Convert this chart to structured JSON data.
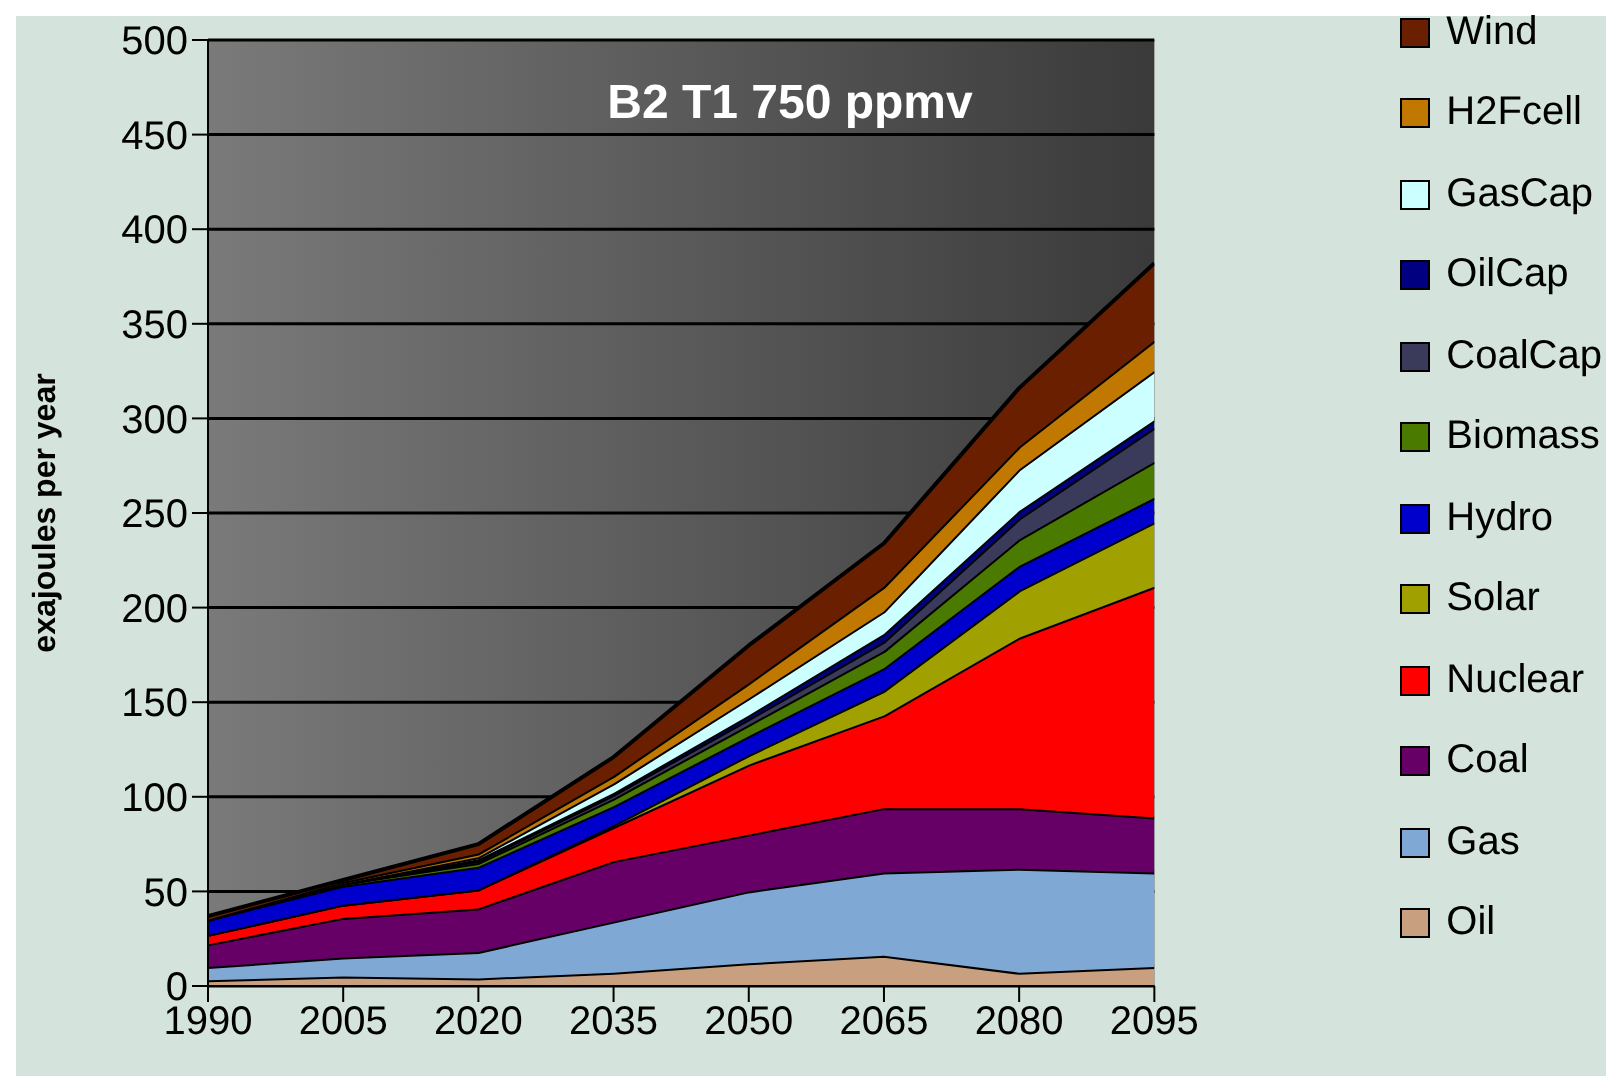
{
  "chart_data": {
    "type": "area",
    "stacked": true,
    "title": "B2 T1 750 ppmv",
    "ylabel": "exajoules per year",
    "categories": [
      "1990",
      "2005",
      "2020",
      "2035",
      "2050",
      "2065",
      "2080",
      "2095"
    ],
    "ylim": [
      0,
      500
    ],
    "yticks": [
      0,
      50,
      100,
      150,
      200,
      250,
      300,
      350,
      400,
      450,
      500
    ],
    "grid": "y",
    "legend": "right",
    "series": [
      {
        "name": "Oil",
        "color": "#c8a080",
        "values": [
          3,
          5,
          4,
          7,
          12,
          16,
          7,
          10
        ]
      },
      {
        "name": "Gas",
        "color": "#80a8d4",
        "values": [
          7,
          10,
          14,
          27,
          38,
          44,
          55,
          50
        ]
      },
      {
        "name": "Coal",
        "color": "#660066",
        "values": [
          12,
          21,
          23,
          32,
          30,
          34,
          32,
          29
        ]
      },
      {
        "name": "Nuclear",
        "color": "#ff0000",
        "values": [
          5,
          7,
          10,
          18,
          37,
          49,
          90,
          122
        ]
      },
      {
        "name": "Solar",
        "color": "#a0a000",
        "values": [
          0,
          0,
          0,
          1,
          5,
          13,
          25,
          34
        ]
      },
      {
        "name": "Hydro",
        "color": "#0000cc",
        "values": [
          8,
          10,
          12,
          10,
          10,
          12,
          13,
          13
        ]
      },
      {
        "name": "Biomass",
        "color": "#4a7a00",
        "values": [
          0,
          1,
          2,
          4,
          6,
          9,
          14,
          19
        ]
      },
      {
        "name": "CoalCap",
        "color": "#3a3a5a",
        "values": [
          0,
          0,
          1,
          2,
          3,
          5,
          11,
          18
        ]
      },
      {
        "name": "OilCap",
        "color": "#000080",
        "values": [
          0,
          0,
          1,
          1,
          2,
          4,
          4,
          4
        ]
      },
      {
        "name": "GasCap",
        "color": "#ccffff",
        "values": [
          0,
          0,
          1,
          5,
          9,
          12,
          22,
          26
        ]
      },
      {
        "name": "H2Fcell",
        "color": "#c07800",
        "values": [
          0,
          1,
          2,
          4,
          8,
          13,
          12,
          16
        ]
      },
      {
        "name": "Wind",
        "color": "#6a2000",
        "values": [
          2,
          1,
          5,
          10,
          20,
          23,
          31,
          41
        ]
      }
    ]
  }
}
